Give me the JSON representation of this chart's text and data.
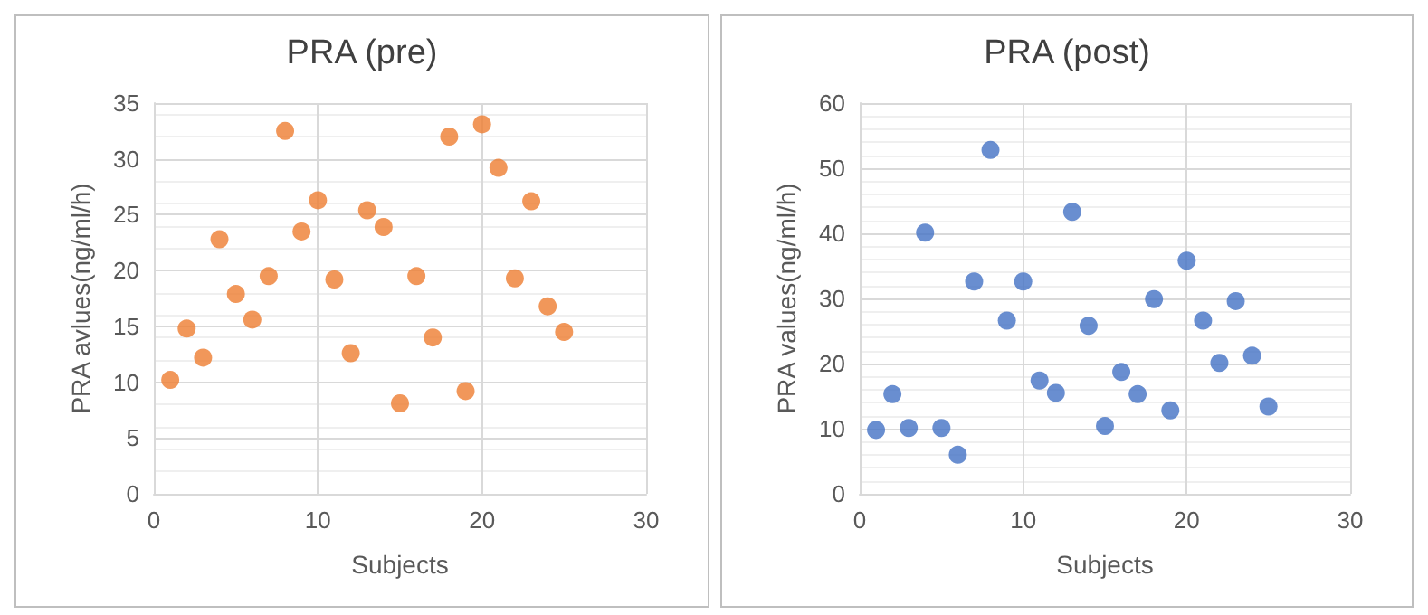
{
  "chart_data": [
    {
      "type": "scatter",
      "title": "PRA (pre)",
      "xlabel": "Subjects",
      "ylabel": "PRA avlues(ng/ml/h)",
      "x": [
        1,
        2,
        3,
        4,
        5,
        6,
        7,
        8,
        9,
        10,
        11,
        12,
        13,
        14,
        15,
        16,
        17,
        18,
        19,
        20,
        21,
        22,
        23,
        24,
        25
      ],
      "series": [
        {
          "color": "#ed7d31",
          "values": [
            10.2,
            14.8,
            12.2,
            22.8,
            17.9,
            15.6,
            19.5,
            32.5,
            23.5,
            26.3,
            19.2,
            12.6,
            25.4,
            23.9,
            8.1,
            19.5,
            14.0,
            32.0,
            9.2,
            33.1,
            29.2,
            19.3,
            26.2,
            16.8,
            14.5
          ]
        }
      ],
      "xlim": [
        0,
        30
      ],
      "xticks": [
        0,
        10,
        20,
        30
      ],
      "ylim": [
        0,
        35
      ],
      "yticks": [
        0,
        5,
        10,
        15,
        20,
        25,
        30,
        35
      ],
      "grid": true,
      "marker": "circle"
    },
    {
      "type": "scatter",
      "title": "PRA (post)",
      "xlabel": "Subjects",
      "ylabel": "PRA values(ng/ml/h)",
      "x": [
        1,
        2,
        3,
        4,
        5,
        6,
        7,
        8,
        9,
        10,
        11,
        12,
        13,
        14,
        15,
        16,
        17,
        18,
        19,
        20,
        21,
        22,
        23,
        24,
        25
      ],
      "series": [
        {
          "color": "#4472c4",
          "values": [
            9.8,
            15.3,
            10.1,
            40.1,
            10.1,
            6.0,
            32.6,
            52.8,
            26.6,
            32.6,
            17.4,
            15.5,
            43.3,
            25.8,
            10.4,
            18.7,
            15.3,
            29.9,
            12.8,
            35.8,
            26.6,
            20.1,
            29.6,
            21.2,
            13.4
          ]
        }
      ],
      "xlim": [
        0,
        30
      ],
      "xticks": [
        0,
        10,
        20,
        30
      ],
      "ylim": [
        0,
        60
      ],
      "yticks": [
        0,
        10,
        20,
        30,
        40,
        50,
        60
      ],
      "grid": true,
      "marker": "circle"
    }
  ]
}
